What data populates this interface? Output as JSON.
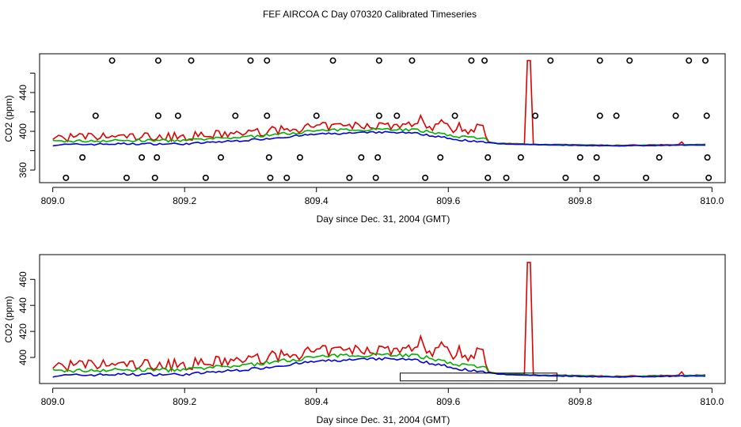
{
  "chart_data": {
    "title": "FEF AIRCOA C  Day 070320  Calibrated Timeseries",
    "series_colors": [
      "#e00000",
      "#00b000",
      "#0000e0"
    ],
    "panels": [
      {
        "type": "line",
        "xlabel": "Day since Dec. 31, 2004 (GMT)",
        "ylabel": "CO2 (ppm)",
        "xlim": [
          808.98,
          810.02
        ],
        "ylim": [
          347,
          480
        ],
        "xticks": [
          809.0,
          809.2,
          809.4,
          809.6,
          809.8,
          810.0
        ],
        "xtick_labels": [
          "809.0",
          "809.2",
          "809.4",
          "809.6",
          "809.8",
          "810.0"
        ],
        "yticks": [
          360,
          380,
          400,
          420,
          440,
          460
        ],
        "ytick_labels": [
          "360",
          "",
          "400",
          "",
          "440",
          ""
        ],
        "markers": {
          "rows": [
            {
              "y": 473,
              "x": [
                809.09,
                809.16,
                809.21,
                809.3,
                809.325,
                809.425,
                809.495,
                809.545,
                809.635,
                809.655,
                809.755,
                809.83,
                809.875,
                809.965,
                809.99
              ]
            },
            {
              "y": 416,
              "x": [
                809.065,
                809.16,
                809.19,
                809.277,
                809.325,
                809.4,
                809.495,
                809.522,
                809.61,
                809.732,
                809.83,
                809.855,
                809.945,
                809.992
              ]
            },
            {
              "y": 373,
              "x": [
                809.045,
                809.135,
                809.158,
                809.255,
                809.328,
                809.375,
                809.468,
                809.493,
                809.588,
                809.66,
                809.71,
                809.8,
                809.825,
                809.92,
                809.993
              ]
            },
            {
              "y": 352,
              "x": [
                809.02,
                809.112,
                809.155,
                809.232,
                809.33,
                809.355,
                809.45,
                809.49,
                809.565,
                809.66,
                809.688,
                809.778,
                809.825,
                809.9,
                809.995
              ]
            }
          ]
        }
      },
      {
        "type": "line",
        "xlabel": "Day since Dec. 31, 2004 (GMT)",
        "ylabel": "CO2 (ppm)",
        "xlim": [
          808.98,
          810.02
        ],
        "ylim": [
          380,
          479
        ],
        "xticks": [
          809.0,
          809.2,
          809.4,
          809.6,
          809.8,
          810.0
        ],
        "xtick_labels": [
          "809.0",
          "809.2",
          "809.4",
          "809.6",
          "809.8",
          "810.0"
        ],
        "yticks": [
          400,
          420,
          440,
          460
        ],
        "ytick_labels": [
          "400",
          "420",
          "440",
          "460"
        ],
        "inset_box": {
          "x": [
            809.527,
            809.765
          ],
          "y": [
            382,
            388
          ]
        }
      }
    ]
  }
}
